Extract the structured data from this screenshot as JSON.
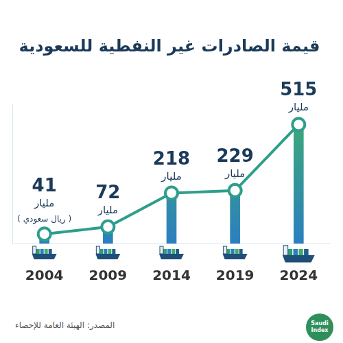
{
  "chart_data": {
    "type": "line",
    "title": "قيمة الصادرات غير النفطية للسعودية",
    "categories": [
      "2004",
      "2009",
      "2014",
      "2019",
      "2024"
    ],
    "values": [
      41,
      72,
      218,
      229,
      515
    ],
    "unit": "مليار",
    "value_notes": [
      "( ريال سعودي )",
      null,
      null,
      null,
      null
    ],
    "color": "#2f9e8c",
    "marker": "circle",
    "ylim": [
      0,
      600
    ],
    "grid": false,
    "data_labels": true,
    "tick_labels": "x",
    "source": "المصدر: الهيئة العامة للإحصاء",
    "logo": "Saudi Index"
  }
}
